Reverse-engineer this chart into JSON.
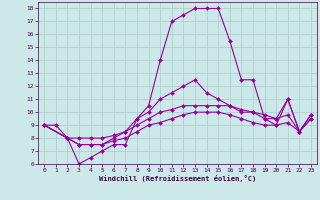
{
  "xlabel": "Windchill (Refroidissement éolien,°C)",
  "background_color": "#cce8e8",
  "grid_color": "#aacccc",
  "line_color": "#990099",
  "xlim": [
    -0.5,
    23.5
  ],
  "ylim": [
    6,
    18.5
  ],
  "xticks": [
    0,
    1,
    2,
    3,
    4,
    5,
    6,
    7,
    8,
    9,
    10,
    11,
    12,
    13,
    14,
    15,
    16,
    17,
    18,
    19,
    20,
    21,
    22,
    23
  ],
  "yticks": [
    6,
    7,
    8,
    9,
    10,
    11,
    12,
    13,
    14,
    15,
    16,
    17,
    18
  ],
  "lines": [
    {
      "x": [
        0,
        1,
        2,
        3,
        4,
        5,
        6,
        7,
        8,
        9,
        10,
        11,
        12,
        13,
        14,
        15,
        16,
        17,
        18,
        19,
        20,
        21,
        22,
        23
      ],
      "y": [
        9,
        9,
        8,
        6,
        6.5,
        7,
        7.5,
        7.5,
        9.5,
        10.5,
        14,
        17,
        17.5,
        18,
        18,
        18,
        15.5,
        12.5,
        12.5,
        9.5,
        9,
        11,
        8.5,
        9.5
      ]
    },
    {
      "x": [
        0,
        2,
        3,
        4,
        5,
        6,
        7,
        8,
        9,
        10,
        11,
        12,
        13,
        14,
        15,
        16,
        17,
        18,
        19,
        20,
        21,
        22,
        23
      ],
      "y": [
        9,
        8,
        7.5,
        7.5,
        7.5,
        8,
        8.5,
        9.5,
        10,
        11,
        11.5,
        12,
        12.5,
        11.5,
        11,
        10.5,
        10,
        10,
        9.5,
        9.5,
        11,
        8.5,
        9.8
      ]
    },
    {
      "x": [
        0,
        2,
        3,
        4,
        5,
        6,
        7,
        8,
        9,
        10,
        11,
        12,
        13,
        14,
        15,
        16,
        17,
        18,
        19,
        20,
        21,
        22,
        23
      ],
      "y": [
        9,
        8,
        8,
        8,
        8,
        8.2,
        8.5,
        9,
        9.5,
        10,
        10.2,
        10.5,
        10.5,
        10.5,
        10.5,
        10.5,
        10.2,
        10,
        9.8,
        9.5,
        9.8,
        8.5,
        9.8
      ]
    },
    {
      "x": [
        0,
        2,
        3,
        4,
        5,
        6,
        7,
        8,
        9,
        10,
        11,
        12,
        13,
        14,
        15,
        16,
        17,
        18,
        19,
        20,
        21,
        22,
        23
      ],
      "y": [
        9,
        8,
        7.5,
        7.5,
        7.5,
        7.8,
        8,
        8.5,
        9,
        9.2,
        9.5,
        9.8,
        10,
        10,
        10,
        9.8,
        9.5,
        9.2,
        9,
        9,
        9.2,
        8.5,
        9.5
      ]
    }
  ]
}
